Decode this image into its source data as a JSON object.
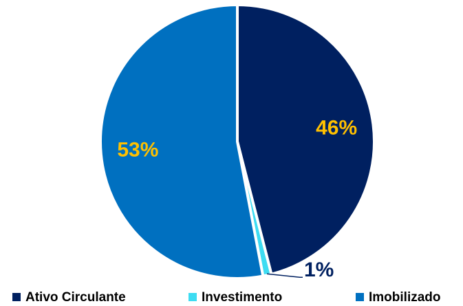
{
  "chart_data": {
    "type": "pie",
    "categories": [
      "Ativo Circulante",
      "Investimento",
      "Imobilizado"
    ],
    "values": [
      46,
      1,
      53
    ],
    "value_labels": [
      "46%",
      "1%",
      "53%"
    ],
    "colors": [
      "#002060",
      "#3ddcf2",
      "#0070c0"
    ],
    "label_colors": [
      "#ffc000",
      "#002060",
      "#ffc000"
    ],
    "legend": "bottom"
  }
}
